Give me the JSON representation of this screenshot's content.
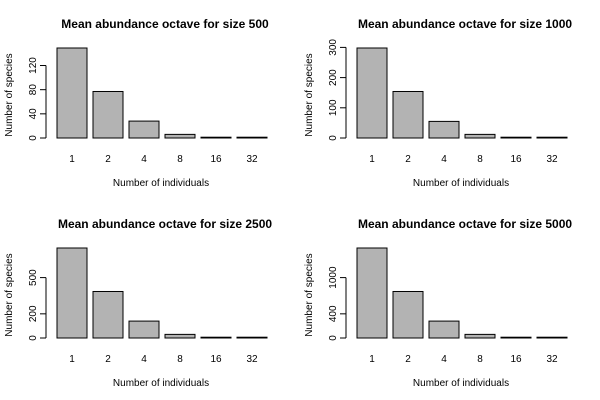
{
  "chart_data": [
    {
      "type": "bar",
      "title": "Mean abundance octave for size 500",
      "xlabel": "Number of individuals",
      "ylabel": "Number of species",
      "categories": [
        "1",
        "2",
        "4",
        "8",
        "16",
        "32"
      ],
      "values": [
        149,
        77,
        28,
        6,
        1,
        0.5
      ],
      "yticks": [
        0,
        40,
        80,
        120
      ],
      "ylim": [
        0,
        149
      ]
    },
    {
      "type": "bar",
      "title": "Mean abundance octave for size 1000",
      "xlabel": "Number of individuals",
      "ylabel": "Number of species",
      "categories": [
        "1",
        "2",
        "4",
        "8",
        "16",
        "32"
      ],
      "values": [
        298,
        154,
        55,
        12,
        2,
        1
      ],
      "yticks": [
        0,
        100,
        200,
        300
      ],
      "ylim": [
        0,
        298
      ]
    },
    {
      "type": "bar",
      "title": "Mean abundance octave for size 2500",
      "xlabel": "Number of individuals",
      "ylabel": "Number of species",
      "categories": [
        "1",
        "2",
        "4",
        "8",
        "16",
        "32"
      ],
      "values": [
        745,
        385,
        140,
        30,
        5,
        2
      ],
      "yticks": [
        0,
        200,
        500
      ],
      "ylim": [
        0,
        745
      ]
    },
    {
      "type": "bar",
      "title": "Mean abundance octave for size 5000",
      "xlabel": "Number of individuals",
      "ylabel": "Number of species",
      "categories": [
        "1",
        "2",
        "4",
        "8",
        "16",
        "32"
      ],
      "values": [
        1490,
        770,
        280,
        60,
        10,
        4
      ],
      "yticks": [
        0,
        400,
        1000
      ],
      "ylim": [
        0,
        1490
      ]
    }
  ]
}
